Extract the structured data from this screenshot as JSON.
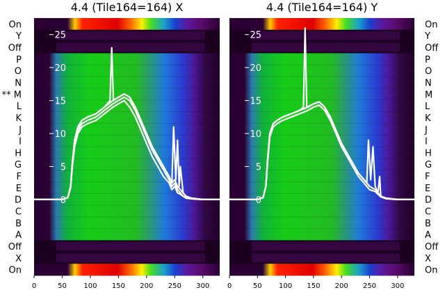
{
  "figure": {
    "row_labels": [
      "On",
      "Y",
      "Off",
      "P",
      "O",
      "N",
      "M",
      "L",
      "K",
      "J",
      "I",
      "H",
      "G",
      "F",
      "E",
      "D",
      "C",
      "B",
      "A",
      "Off",
      "X",
      "On"
    ],
    "marked_row_prefix": "** ",
    "marked_row_index": 6,
    "x_ticks": [
      0,
      50,
      100,
      150,
      200,
      250,
      300
    ],
    "y_ticks": [
      0,
      5,
      10,
      15,
      20,
      25
    ],
    "x_range": [
      0,
      330
    ],
    "y_range": [
      -11.5,
      27.5
    ]
  },
  "chart_data": [
    {
      "type": "line",
      "title": "4.4 (Tile164=164) X",
      "background": "heatmap of channel traces per row (dark purple to green to red colormap)",
      "grid": false,
      "legend": "none",
      "xlim": [
        0,
        330
      ],
      "ylim": [
        -11.5,
        27.5
      ],
      "xlabel": "",
      "ylabel": "",
      "series": [
        {
          "x": [
            0,
            20,
            50,
            60,
            65,
            68,
            72,
            78,
            85,
            95,
            110,
            125,
            140,
            150,
            160,
            170,
            180,
            190,
            200,
            210,
            220,
            230,
            240,
            245,
            250,
            255,
            260,
            265,
            270,
            280,
            300,
            330
          ],
          "y": [
            0,
            0,
            0,
            0.3,
            2,
            5.5,
            9,
            11,
            12,
            12.5,
            13,
            14,
            15,
            15.5,
            16,
            15.5,
            14,
            12,
            10,
            8,
            6.5,
            5,
            3.5,
            2.5,
            3,
            2,
            1.5,
            1,
            0.5,
            0.2,
            0,
            0
          ]
        },
        {
          "x": [
            0,
            20,
            50,
            60,
            65,
            68,
            72,
            78,
            85,
            95,
            110,
            125,
            140,
            150,
            160,
            170,
            180,
            190,
            200,
            210,
            220,
            230,
            240,
            245,
            250,
            255,
            260,
            265,
            270,
            280,
            300,
            330
          ],
          "y": [
            0,
            0,
            0,
            0.3,
            2,
            5,
            8.5,
            10.5,
            11.5,
            12,
            12.5,
            13.5,
            14.5,
            15,
            15.5,
            15,
            13.5,
            11.5,
            9.5,
            7.5,
            6,
            4.5,
            3,
            2,
            2.5,
            1.5,
            1,
            0.5,
            0.3,
            0.1,
            0,
            0
          ]
        },
        {
          "x": [
            0,
            20,
            50,
            60,
            65,
            68,
            72,
            78,
            85,
            95,
            110,
            125,
            140,
            150,
            160,
            170,
            180,
            190,
            200,
            210,
            220,
            230,
            240,
            245,
            250,
            255,
            260,
            265,
            270,
            280,
            300,
            330
          ],
          "y": [
            0,
            0,
            0,
            0.3,
            1.8,
            5,
            8,
            10,
            11,
            11.5,
            12,
            13,
            14,
            14.5,
            15,
            14,
            12.5,
            10.5,
            8.5,
            6.5,
            5,
            3.5,
            2.5,
            1.5,
            2,
            1,
            0.8,
            0.5,
            0.2,
            0.1,
            0,
            0
          ]
        },
        {
          "x": [
            0,
            20,
            50,
            60,
            65,
            68,
            72,
            78,
            85,
            95,
            110,
            125,
            135,
            138,
            141,
            150,
            160,
            170,
            180,
            190,
            200,
            210,
            220,
            230,
            240,
            245,
            248,
            252,
            255,
            258,
            260,
            265,
            270,
            280,
            300,
            330
          ],
          "y": [
            0,
            0,
            0,
            0.3,
            2,
            5.5,
            9,
            11,
            12,
            12.5,
            13,
            14,
            15,
            23,
            15,
            15.5,
            16,
            15.5,
            14,
            12,
            10,
            8,
            6.5,
            5,
            3.5,
            2.5,
            11,
            3,
            9,
            2,
            5,
            1,
            0.5,
            0.2,
            0,
            0
          ]
        }
      ]
    },
    {
      "type": "line",
      "title": "4.4 (Tile164=164) Y",
      "background": "heatmap of channel traces per row (dark purple to green to red colormap)",
      "grid": false,
      "legend": "none",
      "xlim": [
        0,
        330
      ],
      "ylim": [
        -11.5,
        27.5
      ],
      "xlabel": "",
      "ylabel": "",
      "series": [
        {
          "x": [
            0,
            20,
            50,
            60,
            65,
            68,
            72,
            78,
            85,
            95,
            110,
            125,
            140,
            150,
            160,
            170,
            180,
            190,
            200,
            210,
            220,
            230,
            240,
            250,
            260,
            265,
            270,
            280,
            300,
            330
          ],
          "y": [
            0,
            0,
            0,
            0.3,
            2,
            6,
            10,
            11.5,
            12,
            12.5,
            13,
            13.5,
            14,
            14.5,
            14.8,
            14,
            12.5,
            10.5,
            8.5,
            7,
            5.5,
            4,
            3,
            2,
            1.5,
            1,
            0.5,
            0.2,
            0,
            0
          ]
        },
        {
          "x": [
            0,
            20,
            50,
            60,
            65,
            68,
            72,
            78,
            85,
            95,
            110,
            125,
            140,
            150,
            160,
            170,
            180,
            190,
            200,
            210,
            220,
            230,
            240,
            250,
            260,
            265,
            270,
            280,
            300,
            330
          ],
          "y": [
            0,
            0,
            0,
            0.3,
            2,
            5.5,
            9.5,
            11,
            11.5,
            12,
            12.5,
            13,
            13.5,
            14,
            14.3,
            13.5,
            12,
            10,
            8,
            6.5,
            5,
            3.5,
            2.5,
            1.5,
            1.2,
            0.8,
            0.4,
            0.1,
            0,
            0
          ]
        },
        {
          "x": [
            0,
            20,
            50,
            60,
            65,
            68,
            72,
            78,
            85,
            95,
            110,
            125,
            132,
            135,
            138,
            150,
            160,
            170,
            180,
            190,
            200,
            210,
            220,
            230,
            240,
            245,
            248,
            252,
            256,
            260,
            265,
            268,
            270,
            280,
            300,
            330
          ],
          "y": [
            0,
            0,
            0,
            0.3,
            2,
            6,
            10,
            11.5,
            12,
            12.5,
            13,
            13.5,
            14,
            26,
            14,
            14.5,
            14.8,
            14,
            12.5,
            10.5,
            8.5,
            7,
            5.5,
            4,
            3,
            2.5,
            9,
            3,
            8,
            2,
            1,
            3.5,
            0.5,
            0.2,
            0,
            0
          ]
        }
      ]
    }
  ]
}
